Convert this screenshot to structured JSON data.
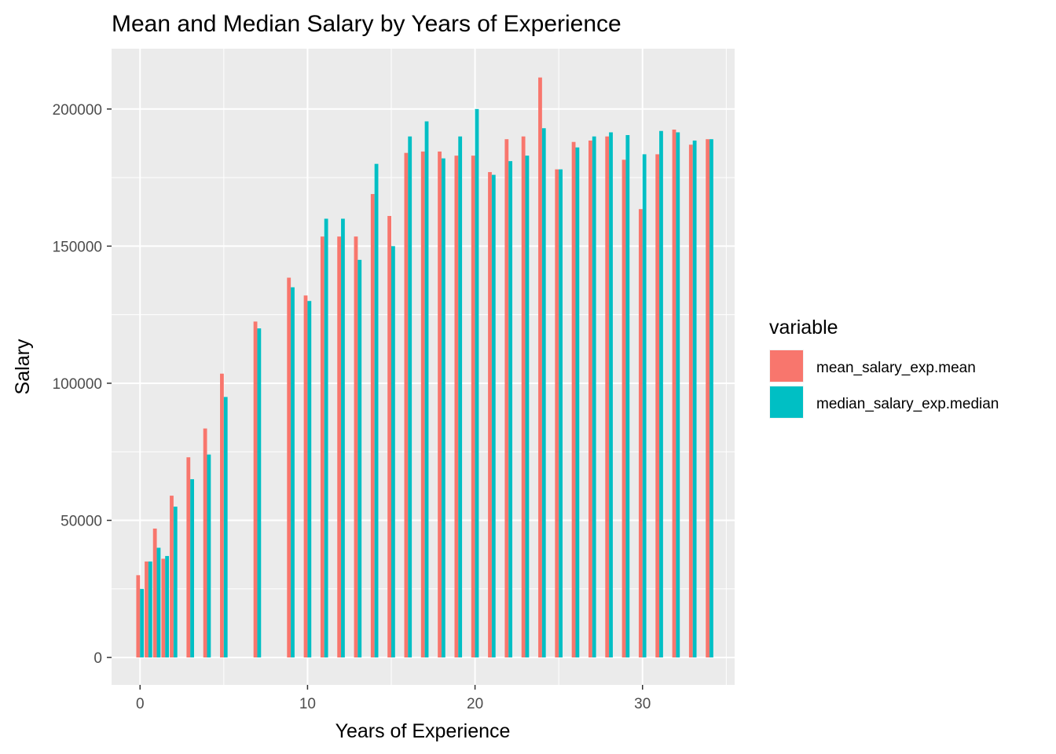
{
  "chart_data": {
    "type": "bar",
    "title": "Mean and Median Salary by Years of Experience",
    "xlabel": "Years of Experience",
    "ylabel": "Salary",
    "xlim": [
      -1.7,
      35.5
    ],
    "ylim": [
      -10000,
      222000
    ],
    "x_ticks": [
      0,
      10,
      20,
      30
    ],
    "x_tick_labels": [
      "0",
      "10",
      "20",
      "30"
    ],
    "y_ticks": [
      0,
      50000,
      100000,
      150000,
      200000
    ],
    "y_tick_labels": [
      "0",
      "50000",
      "100000",
      "150000",
      "200000"
    ],
    "grid": true,
    "legend": {
      "title": "variable",
      "position": "right"
    },
    "x": [
      0,
      0.5,
      1,
      1.5,
      2,
      3,
      4,
      5,
      7,
      9,
      10,
      11,
      12,
      13,
      14,
      15,
      16,
      17,
      18,
      19,
      20,
      21,
      22,
      23,
      24,
      25,
      26,
      27,
      28,
      29,
      30,
      31,
      32,
      33,
      34
    ],
    "series": [
      {
        "name": "mean_salary_exp.mean",
        "color": "#F8766D",
        "values": [
          30000,
          35000,
          47000,
          36000,
          59000,
          73000,
          83500,
          103500,
          122500,
          138500,
          132000,
          153500,
          153500,
          153500,
          169000,
          161000,
          184000,
          184500,
          184500,
          183000,
          183000,
          177000,
          189000,
          190000,
          211500,
          178000,
          188000,
          188500,
          190000,
          181500,
          163500,
          183500,
          192500,
          187000,
          189000
        ]
      },
      {
        "name": "median_salary_exp.median",
        "color": "#00BFC4",
        "values": [
          25000,
          35000,
          40000,
          37000,
          55000,
          65000,
          74000,
          95000,
          120000,
          135000,
          130000,
          160000,
          160000,
          145000,
          180000,
          150000,
          190000,
          195500,
          182000,
          190000,
          200000,
          176000,
          181000,
          183000,
          193000,
          178000,
          186000,
          190000,
          191500,
          190500,
          183500,
          192000,
          191500,
          188500,
          189000
        ]
      }
    ]
  }
}
